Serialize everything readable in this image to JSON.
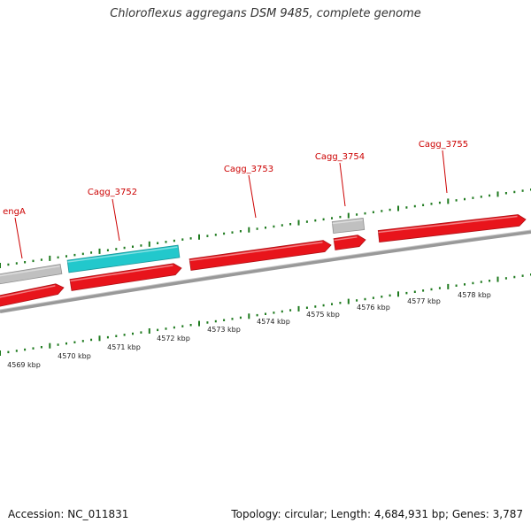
{
  "title": "Chloroflexus aggregans DSM 9485, complete genome",
  "footer": {
    "accession": "Accession: NC_011831",
    "summary": "Topology: circular; Length: 4,684,931 bp; Genes: 3,787"
  },
  "colors": {
    "cds": "#e8141b",
    "rna": "#22c8cc",
    "other": "#c0c0c0",
    "label": "#cc0000",
    "tick": "#1e7a1e",
    "backbone": "#888888"
  },
  "genes": [
    {
      "name": "engA",
      "strand": "+",
      "kind": "other"
    },
    {
      "name": "",
      "strand": "-",
      "kind": "cds"
    },
    {
      "name": "Cagg_3752",
      "strand": "+",
      "kind": "rna"
    },
    {
      "name": "",
      "strand": "-",
      "kind": "cds"
    },
    {
      "name": "Cagg_3753",
      "strand": "-",
      "kind": "cds"
    },
    {
      "name": "Cagg_3754",
      "strand": "+",
      "kind": "other"
    },
    {
      "name": "",
      "strand": "-",
      "kind": "cds"
    },
    {
      "name": "Cagg_3755",
      "strand": "-",
      "kind": "cds"
    }
  ],
  "scale_labels": [
    "4569 kbp",
    "4570 kbp",
    "4571 kbp",
    "4572 kbp",
    "4573 kbp",
    "4574 kbp",
    "4575 kbp",
    "4576 kbp",
    "4577 kbp",
    "4578 kbp"
  ]
}
